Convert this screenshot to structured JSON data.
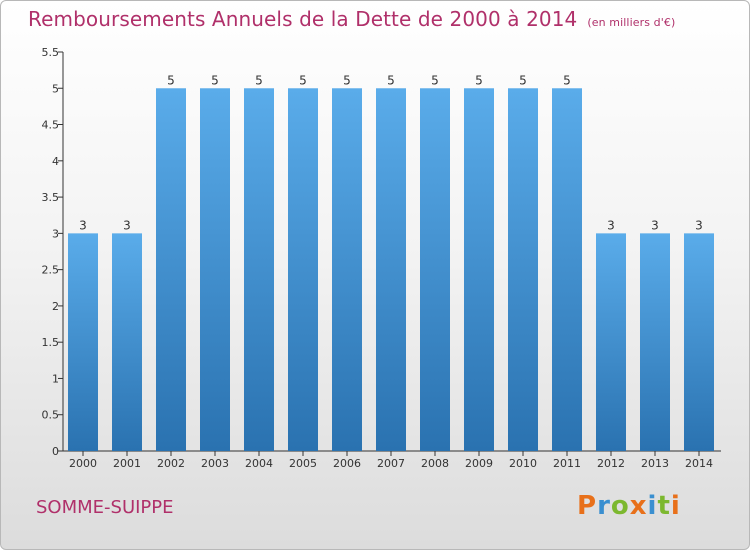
{
  "header": {
    "title": "Remboursements Annuels de la Dette de 2000 à 2014",
    "unit": "(en milliers d'€)"
  },
  "footer": {
    "commune": "SOMME-SUIPPE",
    "logo_text": "Proxiti"
  },
  "colors": {
    "title": "#b0306a",
    "bar_top": "#5aacea",
    "bar_bottom": "#2a72b0",
    "axis": "#333333",
    "logo": [
      "#e8701a",
      "#3a8fd0",
      "#7cb82f",
      "#e8701a",
      "#3a8fd0",
      "#7cb82f",
      "#e8701a"
    ]
  },
  "chart_data": {
    "type": "bar",
    "categories": [
      "2000",
      "2001",
      "2002",
      "2003",
      "2004",
      "2005",
      "2006",
      "2007",
      "2008",
      "2009",
      "2010",
      "2011",
      "2012",
      "2013",
      "2014"
    ],
    "values": [
      3,
      3,
      5,
      5,
      5,
      5,
      5,
      5,
      5,
      5,
      5,
      5,
      3,
      3,
      3
    ],
    "data_labels": [
      "3",
      "3",
      "5",
      "5",
      "5",
      "5",
      "5",
      "5",
      "5",
      "5",
      "5",
      "5",
      "3",
      "3",
      "3"
    ],
    "yticks": [
      "0",
      "0.5",
      "1",
      "1.5",
      "2",
      "2.5",
      "3",
      "3.5",
      "4",
      "4.5",
      "5",
      "5.5"
    ],
    "ylim": [
      0,
      5.5
    ],
    "grid": false,
    "legend": "none"
  }
}
